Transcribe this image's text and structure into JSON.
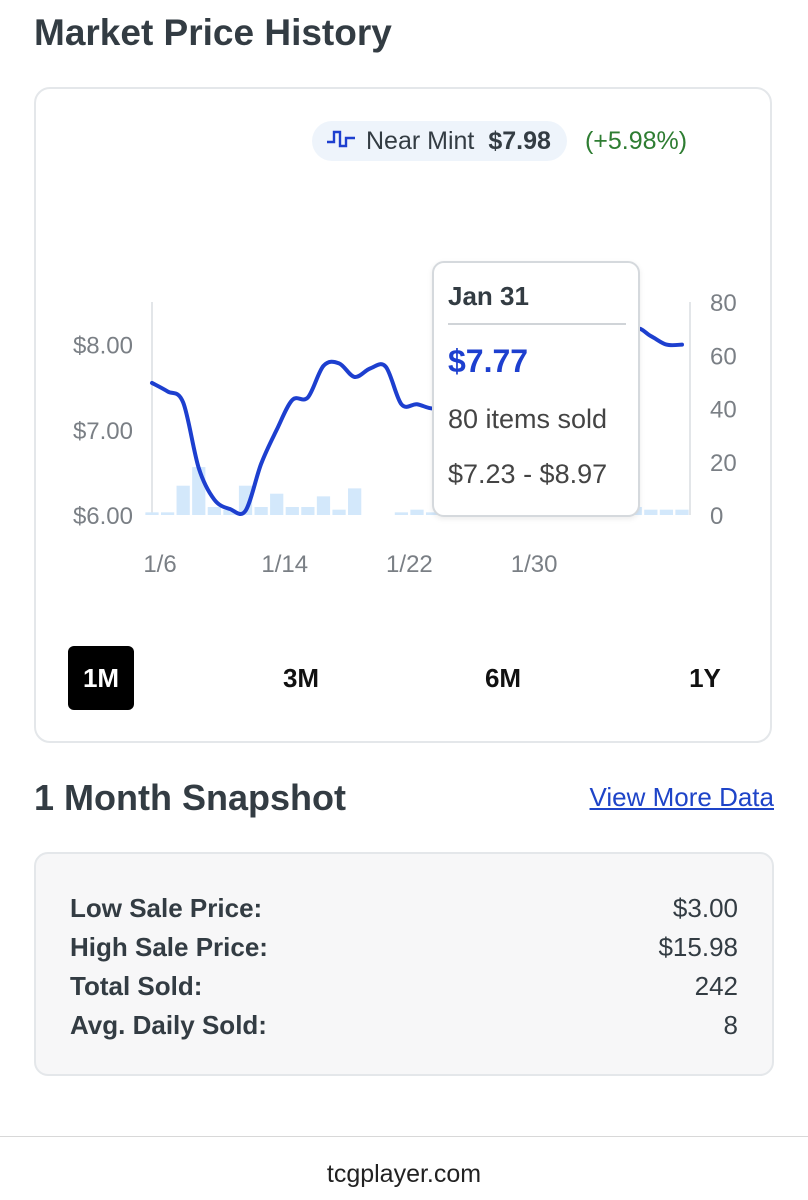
{
  "page_title": "Market Price History",
  "legend": {
    "condition": "Near Mint",
    "price": "$7.98",
    "change": "(+5.98%)",
    "icon": "step-chart-icon"
  },
  "colors": {
    "line": "#1d3fcf",
    "bars": "#d3e8fb",
    "change_positive": "#2e7d32",
    "active_button": "#000000"
  },
  "chart_data": {
    "type": "line",
    "x_tick_labels": [
      "1/6",
      "1/14",
      "1/22",
      "1/30"
    ],
    "y_left_ticks": [
      "$8.00",
      "$7.00",
      "$6.00"
    ],
    "y_right_ticks": [
      "80",
      "60",
      "40",
      "20",
      "0"
    ],
    "ylim_price": [
      6,
      8.5
    ],
    "ylim_volume": [
      0,
      80
    ],
    "price_series": {
      "days": [
        1,
        2,
        3,
        4,
        5,
        6,
        7,
        8,
        9,
        10,
        11,
        12,
        13,
        14,
        15,
        16,
        17,
        18,
        19,
        20,
        21,
        22,
        23,
        24,
        25,
        26,
        27,
        28,
        29,
        30,
        31,
        32,
        33,
        34,
        35
      ],
      "values": [
        7.55,
        7.45,
        7.32,
        6.55,
        6.18,
        6.07,
        6.05,
        6.6,
        7.0,
        7.35,
        7.38,
        7.75,
        7.78,
        7.62,
        7.72,
        7.74,
        7.3,
        7.3,
        7.25,
        7.3,
        7.45,
        7.55,
        7.68,
        7.72,
        7.78,
        7.85,
        7.82,
        7.88,
        7.95,
        7.92,
        7.85,
        8.18,
        8.1,
        8.0,
        8.0
      ]
    },
    "volume_series": {
      "days": [
        1,
        2,
        3,
        4,
        5,
        6,
        7,
        8,
        9,
        10,
        11,
        12,
        13,
        14,
        15,
        16,
        17,
        18,
        19,
        20,
        21,
        22,
        23,
        24,
        25,
        26,
        27,
        28,
        29,
        30,
        31,
        32,
        33,
        34,
        35
      ],
      "values": [
        1,
        1,
        11,
        18,
        3,
        2,
        11,
        3,
        8,
        3,
        3,
        7,
        2,
        10,
        0,
        0,
        1,
        2,
        1,
        2,
        3,
        2,
        1,
        1,
        2,
        1,
        2,
        1,
        2,
        1,
        2,
        3,
        2,
        2,
        2
      ]
    },
    "tooltip": {
      "date": "Jan 31",
      "price": "$7.77",
      "items_sold": "80 items sold",
      "range": "$7.23 - $8.97"
    }
  },
  "range_buttons": [
    "1M",
    "3M",
    "6M",
    "1Y"
  ],
  "active_range": "1M",
  "snapshot": {
    "title": "1 Month Snapshot",
    "link": "View More Data",
    "rows": [
      {
        "label": "Low Sale Price:",
        "value": "$3.00"
      },
      {
        "label": "High Sale Price:",
        "value": "$15.98"
      },
      {
        "label": "Total Sold:",
        "value": "242"
      },
      {
        "label": "Avg. Daily Sold:",
        "value": "8"
      }
    ]
  },
  "footer": "tcgplayer.com"
}
